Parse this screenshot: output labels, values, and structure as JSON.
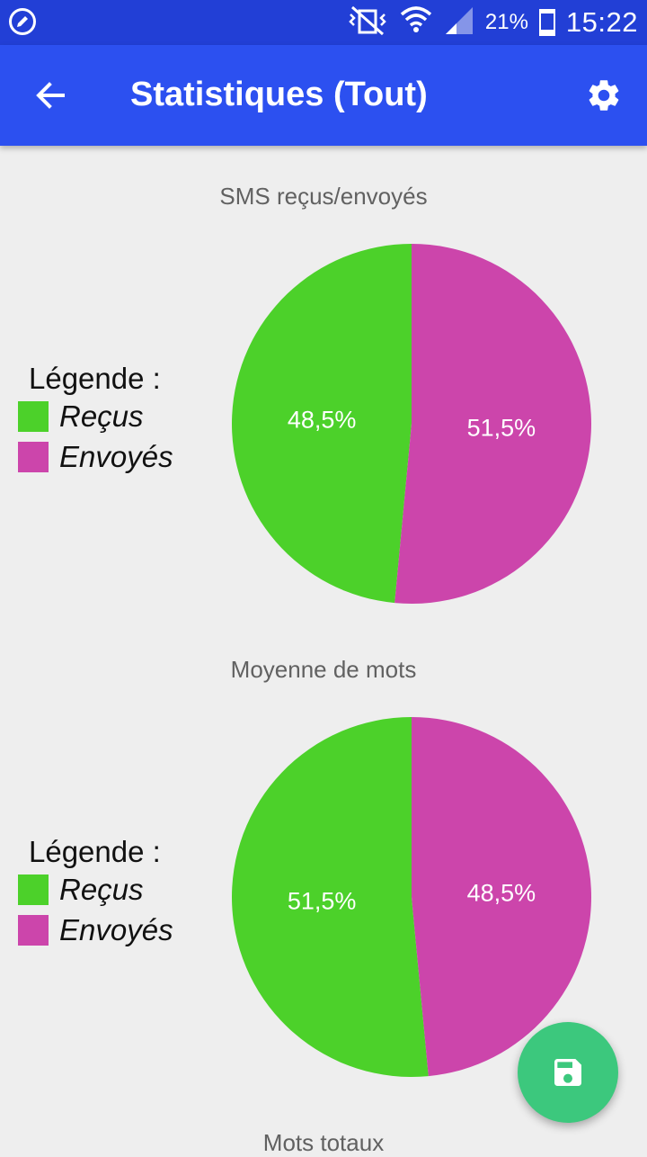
{
  "status_bar": {
    "battery_text": "21%",
    "battery_level": 0.21,
    "time": "15:22",
    "icons": [
      "edit-circle-icon",
      "vibrate-mute-icon",
      "wifi-icon",
      "signal-icon",
      "battery-icon"
    ]
  },
  "app_bar": {
    "title": "Statistiques (Tout)",
    "back_icon": "arrow-back-icon",
    "settings_icon": "gear-icon"
  },
  "colors": {
    "status_bar": "#223fd6",
    "app_bar": "#2c50f0",
    "received": "#4cd12a",
    "sent": "#cc45ab",
    "fab": "#3cc87d",
    "background": "#eeeeee"
  },
  "legend": {
    "title": "Légende :",
    "items": [
      {
        "label": "Reçus",
        "color": "#4cd12a"
      },
      {
        "label": "Envoyés",
        "color": "#cc45ab"
      }
    ]
  },
  "charts": [
    {
      "title": "SMS reçus/envoyés"
    },
    {
      "title": "Moyenne de mots"
    },
    {
      "title": "Mots totaux"
    }
  ],
  "chart_data": [
    {
      "type": "pie",
      "title": "SMS reçus/envoyés",
      "labels": [
        "Reçus",
        "Envoyés"
      ],
      "values": [
        48.5,
        51.5
      ],
      "value_labels": [
        "48,5%",
        "51,5%"
      ],
      "colors": [
        "#4cd12a",
        "#cc45ab"
      ],
      "legend": "left"
    },
    {
      "type": "pie",
      "title": "Moyenne de mots",
      "labels": [
        "Reçus",
        "Envoyés"
      ],
      "values": [
        51.5,
        48.5
      ],
      "value_labels": [
        "51,5%",
        "48,5%"
      ],
      "colors": [
        "#4cd12a",
        "#cc45ab"
      ],
      "legend": "left"
    }
  ],
  "fab": {
    "icon": "save-icon"
  }
}
